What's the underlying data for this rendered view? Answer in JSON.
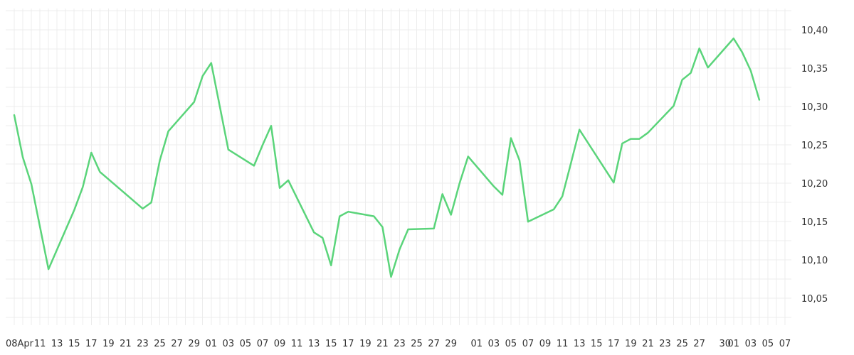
{
  "chart_data": {
    "type": "line",
    "title": "",
    "xlabel": "",
    "ylabel": "",
    "grid": true,
    "y_axis_side": "right",
    "ylim": [
      10.015,
      10.428
    ],
    "y_ticks": [
      "10,05",
      "10,10",
      "10,15",
      "10,20",
      "10,25",
      "10,30",
      "10,35",
      "10,40"
    ],
    "y_tick_values": [
      10.05,
      10.1,
      10.15,
      10.2,
      10.25,
      10.3,
      10.35,
      10.4
    ],
    "x_tick_labels": [
      "08Apr",
      "11",
      "13",
      "15",
      "17",
      "19",
      "21",
      "23",
      "25",
      "27",
      "29",
      "01",
      "03",
      "05",
      "07",
      "09",
      "11",
      "13",
      "15",
      "17",
      "19",
      "21",
      "23",
      "25",
      "27",
      "29",
      "01",
      "03",
      "05",
      "07",
      "09",
      "11",
      "13",
      "15",
      "17",
      "19",
      "21",
      "23",
      "25",
      "27",
      "30",
      "01",
      "03",
      "05",
      "07"
    ],
    "colors": {
      "line": "#5ad47a",
      "grid": "#ececec",
      "text": "#333333"
    },
    "series": [
      {
        "x": [
          "2024-04-08",
          "2024-04-09",
          "2024-04-10",
          "2024-04-12",
          "2024-04-15",
          "2024-04-16",
          "2024-04-17",
          "2024-04-18",
          "2024-04-23",
          "2024-04-24",
          "2024-04-25",
          "2024-04-26",
          "2024-04-29",
          "2024-04-30",
          "2024-05-01",
          "2024-05-03",
          "2024-05-06",
          "2024-05-07",
          "2024-05-08",
          "2024-05-09",
          "2024-05-10",
          "2024-05-13",
          "2024-05-14",
          "2024-05-15",
          "2024-05-16",
          "2024-05-17",
          "2024-05-20",
          "2024-05-21",
          "2024-05-22",
          "2024-05-23",
          "2024-05-24",
          "2024-05-27",
          "2024-05-28",
          "2024-05-29",
          "2024-05-30",
          "2024-05-31",
          "2024-06-03",
          "2024-06-04",
          "2024-06-05",
          "2024-06-06",
          "2024-06-07",
          "2024-06-10",
          "2024-06-11",
          "2024-06-12",
          "2024-06-13",
          "2024-06-17",
          "2024-06-18",
          "2024-06-19",
          "2024-06-20",
          "2024-06-21",
          "2024-06-24",
          "2024-06-25",
          "2024-06-26",
          "2024-06-27",
          "2024-06-28",
          "2024-07-01",
          "2024-07-02",
          "2024-07-03",
          "2024-07-04"
        ],
        "values": [
          10.289,
          10.234,
          10.199,
          10.088,
          10.165,
          10.195,
          10.24,
          10.215,
          10.167,
          10.175,
          10.23,
          10.268,
          10.306,
          10.34,
          10.357,
          10.244,
          10.223,
          10.25,
          10.275,
          10.194,
          10.204,
          10.136,
          10.129,
          10.093,
          10.157,
          10.163,
          10.157,
          10.143,
          10.078,
          10.114,
          10.14,
          10.141,
          10.186,
          10.159,
          10.2,
          10.235,
          10.196,
          10.185,
          10.259,
          10.23,
          10.15,
          10.166,
          10.183,
          10.226,
          10.27,
          10.201,
          10.252,
          10.258,
          10.258,
          10.266,
          10.301,
          10.335,
          10.344,
          10.376,
          10.351,
          10.389,
          10.371,
          10.347,
          10.309
        ]
      }
    ]
  }
}
